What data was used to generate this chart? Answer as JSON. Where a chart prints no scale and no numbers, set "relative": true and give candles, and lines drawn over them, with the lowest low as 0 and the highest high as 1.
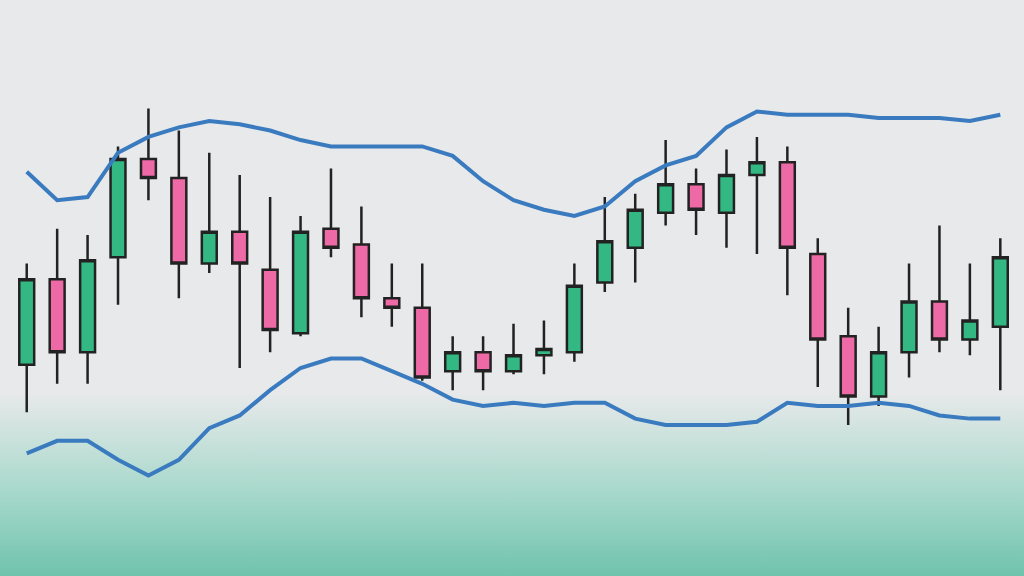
{
  "chart_data": {
    "type": "candlestick",
    "relative": true,
    "categories": [
      null,
      null,
      null,
      null,
      null,
      null,
      null,
      null,
      null,
      null,
      null,
      null,
      null,
      null,
      null,
      null,
      null,
      null,
      null,
      null,
      null,
      null,
      null,
      null,
      null,
      null,
      null,
      null,
      null,
      null,
      null,
      null,
      null
    ],
    "series": [
      {
        "type": "line",
        "color": "#3a7bc0",
        "values": [
          0.8,
          0.71,
          0.72,
          0.86,
          0.91,
          0.94,
          0.96,
          0.95,
          0.93,
          0.9,
          0.88,
          0.88,
          0.88,
          0.88,
          0.85,
          0.77,
          0.71,
          0.68,
          0.66,
          0.69,
          0.77,
          0.82,
          0.85,
          0.94,
          0.99,
          0.98,
          0.98,
          0.98,
          0.97,
          0.97,
          0.97,
          0.96,
          0.98
        ]
      },
      {
        "type": "line",
        "color": "#3a7bc0",
        "values": [
          -0.09,
          -0.05,
          -0.05,
          -0.11,
          -0.16,
          -0.11,
          -0.01,
          0.03,
          0.11,
          0.18,
          0.21,
          0.21,
          0.17,
          0.13,
          0.08,
          0.06,
          0.07,
          0.06,
          0.07,
          0.07,
          0.02,
          0.0,
          0.0,
          0.0,
          0.01,
          0.07,
          0.06,
          0.06,
          0.07,
          0.06,
          0.03,
          0.02,
          0.02
        ]
      },
      {
        "colors": [
          "#33b884",
          "#ee6aa7",
          "#33b884",
          "#33b884",
          "#ee6aa7",
          "#ee6aa7",
          "#33b884",
          "#ee6aa7",
          "#ee6aa7",
          "#33b884",
          "#ee6aa7",
          "#ee6aa7",
          "#ee6aa7",
          "#ee6aa7",
          "#33b884",
          "#ee6aa7",
          "#33b884",
          "#33b884",
          "#33b884",
          "#33b884",
          "#33b884",
          "#33b884",
          "#ee6aa7",
          "#33b884",
          "#33b884",
          "#ee6aa7",
          "#ee6aa7",
          "#ee6aa7",
          "#33b884",
          "#33b884",
          "#ee6aa7",
          "#33b884",
          "#33b884"
        ],
        "ohlc": [
          [
            0.19,
            0.51,
            0.04,
            0.46
          ],
          [
            0.46,
            0.62,
            0.13,
            0.23
          ],
          [
            0.23,
            0.6,
            0.13,
            0.52
          ],
          [
            0.53,
            0.88,
            0.38,
            0.84
          ],
          [
            0.84,
            1.0,
            0.71,
            0.78
          ],
          [
            0.78,
            0.93,
            0.4,
            0.51
          ],
          [
            0.51,
            0.86,
            0.48,
            0.61
          ],
          [
            0.61,
            0.79,
            0.18,
            0.51
          ],
          [
            0.49,
            0.72,
            0.23,
            0.3
          ],
          [
            0.29,
            0.66,
            0.28,
            0.61
          ],
          [
            0.62,
            0.81,
            0.53,
            0.56
          ],
          [
            0.57,
            0.69,
            0.34,
            0.4
          ],
          [
            0.4,
            0.51,
            0.31,
            0.37
          ],
          [
            0.37,
            0.51,
            0.14,
            0.15
          ],
          [
            0.17,
            0.28,
            0.11,
            0.23
          ],
          [
            0.23,
            0.28,
            0.11,
            0.17
          ],
          [
            0.17,
            0.32,
            0.16,
            0.22
          ],
          [
            0.22,
            0.33,
            0.16,
            0.24
          ],
          [
            0.23,
            0.51,
            0.2,
            0.44
          ],
          [
            0.45,
            0.72,
            0.42,
            0.58
          ],
          [
            0.56,
            0.73,
            0.45,
            0.68
          ],
          [
            0.67,
            0.9,
            0.63,
            0.76
          ],
          [
            0.76,
            0.81,
            0.6,
            0.68
          ],
          [
            0.67,
            0.87,
            0.56,
            0.79
          ],
          [
            0.79,
            0.91,
            0.54,
            0.83
          ],
          [
            0.83,
            0.88,
            0.41,
            0.56
          ],
          [
            0.54,
            0.59,
            0.12,
            0.27
          ],
          [
            0.28,
            0.37,
            0.0,
            0.09
          ],
          [
            0.09,
            0.31,
            0.06,
            0.23
          ],
          [
            0.23,
            0.51,
            0.15,
            0.39
          ],
          [
            0.39,
            0.63,
            0.23,
            0.27
          ],
          [
            0.27,
            0.51,
            0.22,
            0.33
          ],
          [
            0.31,
            0.59,
            0.11,
            0.53
          ]
        ]
      }
    ]
  }
}
